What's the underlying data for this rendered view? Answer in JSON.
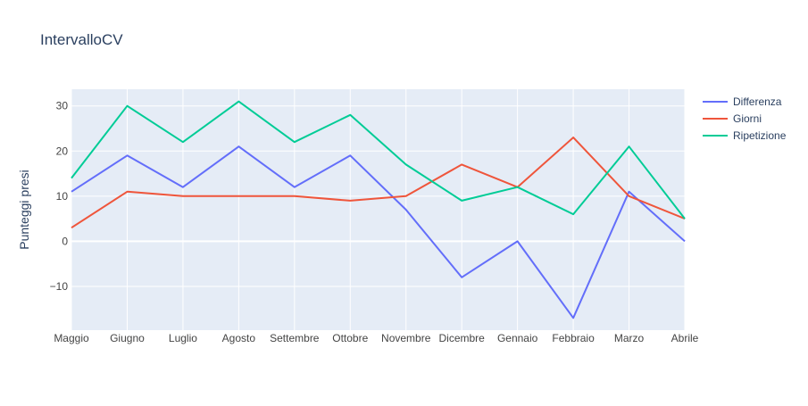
{
  "chart_data": {
    "type": "line",
    "title": "IntervalloCV",
    "xlabel": "",
    "ylabel": "Punteggi presi",
    "categories": [
      "Maggio",
      "Giugno",
      "Luglio",
      "Agosto",
      "Settembre",
      "Ottobre",
      "Novembre",
      "Dicembre",
      "Gennaio",
      "Febbraio",
      "Marzo",
      "Abrile"
    ],
    "ylim": [
      -19.7,
      33.7
    ],
    "yticks": [
      -10,
      0,
      10,
      20,
      30
    ],
    "ytick_labels": [
      "−10",
      "0",
      "10",
      "20",
      "30"
    ],
    "grid": true,
    "legend_position": "top-right",
    "background_color": "#e5ecf6",
    "series": [
      {
        "name": "Differenza",
        "color": "#636efa",
        "values": [
          11,
          19,
          12,
          21,
          12,
          19,
          7,
          -8,
          0,
          -17,
          11,
          0
        ]
      },
      {
        "name": "Giorni",
        "color": "#ef553b",
        "values": [
          3,
          11,
          10,
          10,
          10,
          9,
          10,
          17,
          12,
          23,
          10,
          5
        ]
      },
      {
        "name": "Ripetizione",
        "color": "#00cc96",
        "values": [
          14,
          30,
          22,
          31,
          22,
          28,
          17,
          9,
          12,
          6,
          21,
          5
        ]
      }
    ]
  }
}
